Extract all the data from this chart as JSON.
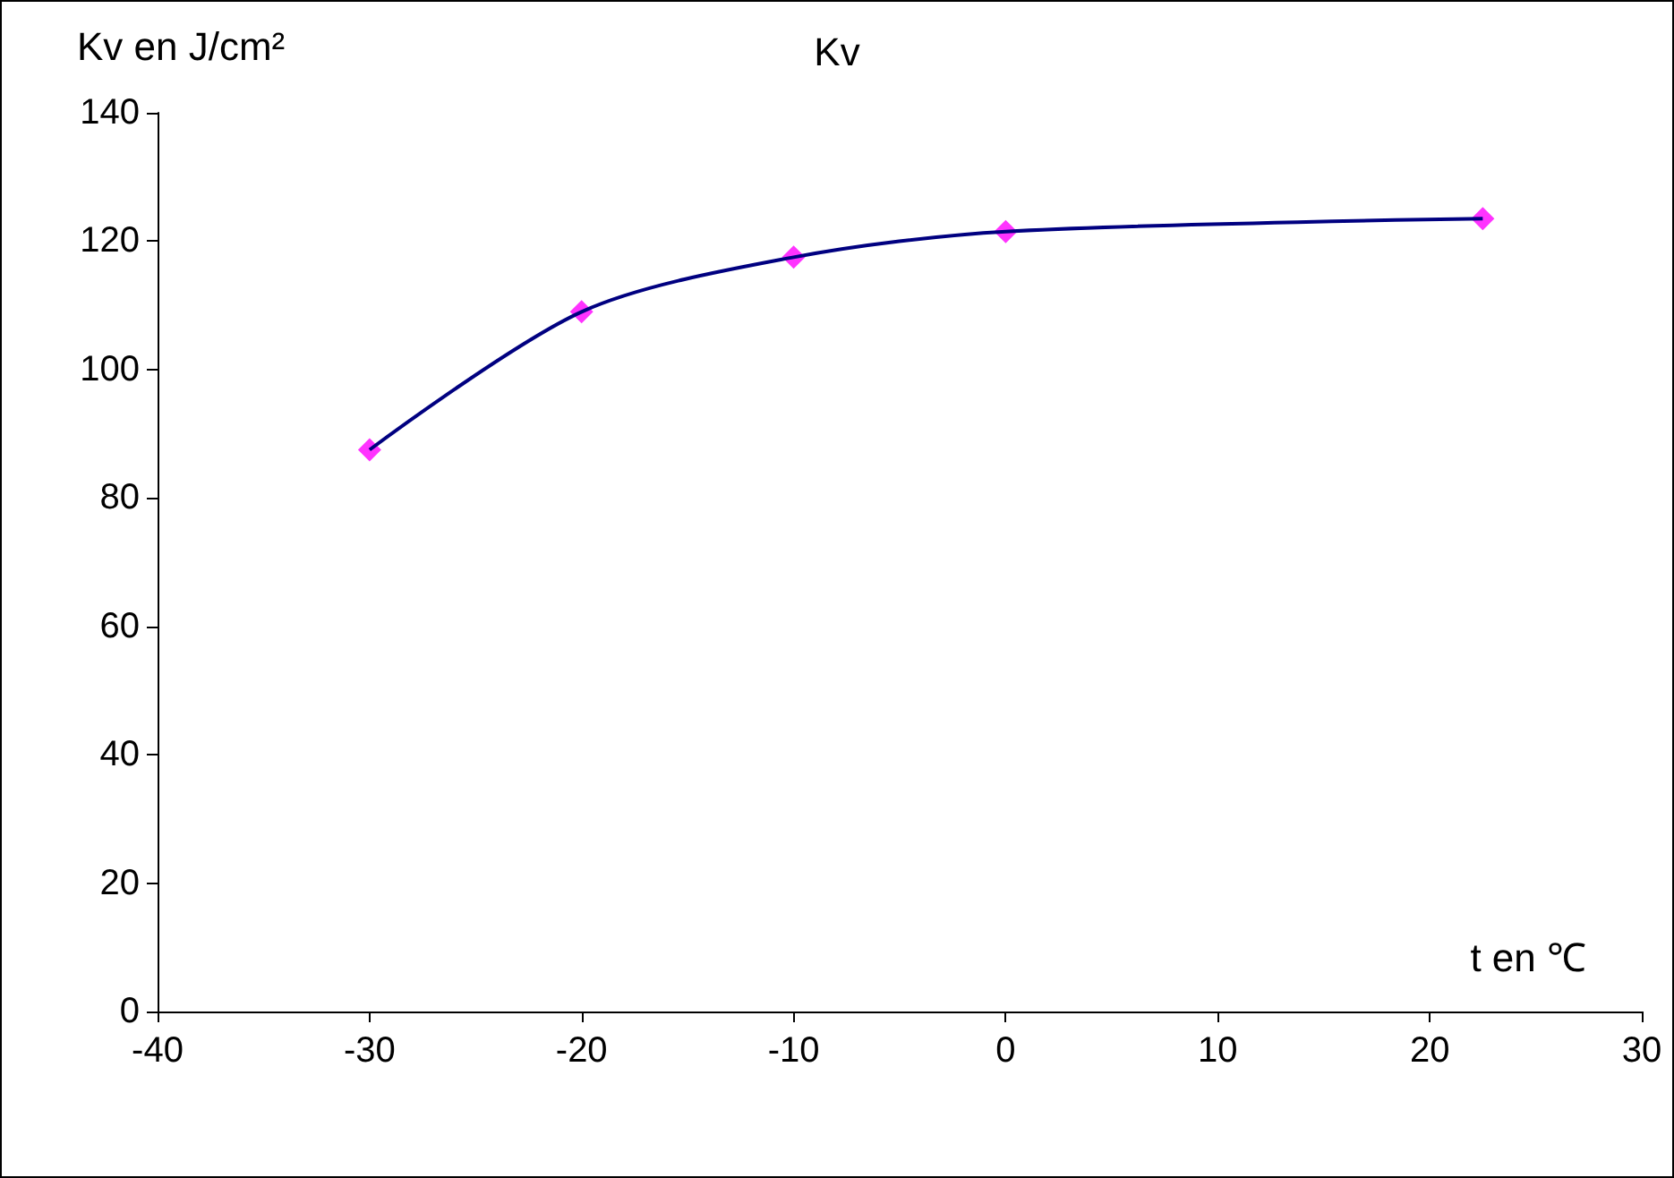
{
  "chart_data": {
    "type": "line",
    "title": "Kv",
    "xlabel": "t en ℃",
    "ylabel": "Kv en J/cm²",
    "x": [
      -30,
      -20,
      -10,
      0,
      22.5
    ],
    "series": [
      {
        "color": "#000080",
        "marker": "none",
        "values": [
          87.5,
          109,
          117.5,
          121.5,
          123.5
        ]
      },
      {
        "type": "scatter",
        "color": "#ff00ff",
        "marker": "diamond",
        "values": [
          87.5,
          109,
          117.5,
          121.5,
          123.5
        ]
      }
    ],
    "xlim": [
      -40,
      30
    ],
    "xticks": [
      -40,
      -30,
      -20,
      -10,
      0,
      10,
      20,
      30
    ],
    "ylim": [
      0,
      140
    ],
    "yticks": [
      0,
      20,
      40,
      60,
      80,
      100,
      120,
      140
    ],
    "grid": false
  }
}
